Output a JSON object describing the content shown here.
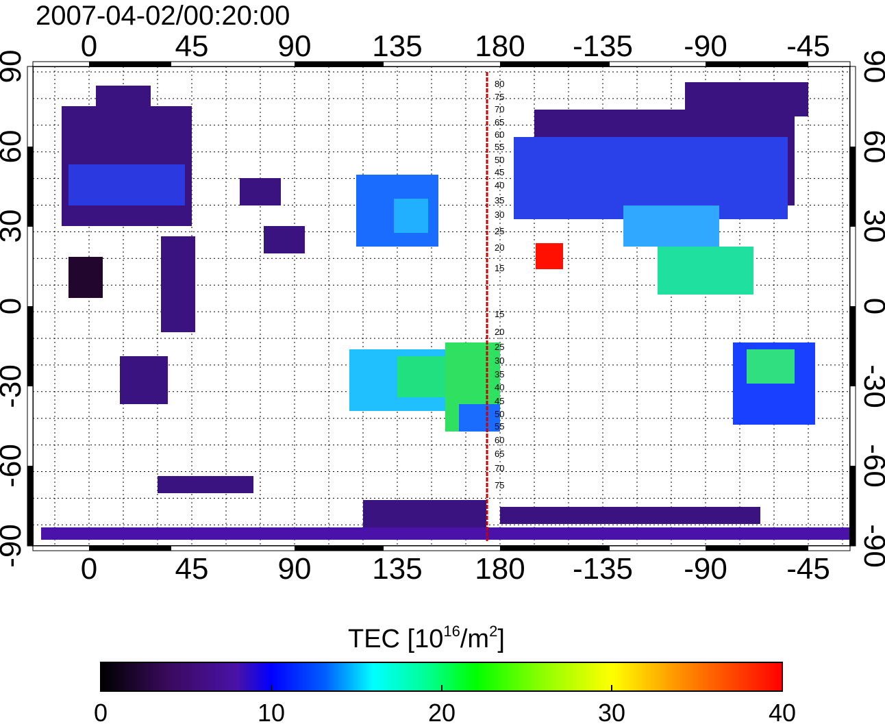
{
  "title": "2007-04-02/00:20:00",
  "x_ticks_top": [
    "0",
    "45",
    "90",
    "135",
    "180",
    "-135",
    "-90",
    "-45"
  ],
  "x_ticks_bottom": [
    "0",
    "45",
    "90",
    "135",
    "180",
    "-135",
    "-90",
    "-45"
  ],
  "y_ticks": [
    "90",
    "60",
    "30",
    "0",
    "-30",
    "-60",
    "-90"
  ],
  "colorbar": {
    "label_main": "TEC  [10",
    "label_sup1": "16",
    "label_mid": "/m",
    "label_sup2": "2",
    "label_end": "]",
    "ticks": [
      "0",
      "10",
      "20",
      "30",
      "40"
    ],
    "colors": [
      "#000000",
      "#3a0a5e",
      "#4a12a8",
      "#0000ff",
      "#00a0ff",
      "#00ffff",
      "#00ff80",
      "#00ff00",
      "#80ff00",
      "#ffff00",
      "#ffa000",
      "#ff4000",
      "#ff0000"
    ]
  },
  "geomag_lat_labels_north": [
    "80",
    "75",
    "70",
    "65",
    "60",
    "55",
    "50",
    "45",
    "40",
    "35",
    "30",
    "25",
    "20",
    "15"
  ],
  "geomag_lat_labels_south": [
    "15",
    "20",
    "25",
    "30",
    "35",
    "40",
    "45",
    "50",
    "55",
    "60",
    "65",
    "70",
    "75"
  ],
  "styles": {
    "terminator_color": "#d00000",
    "grid_color": "#000000"
  }
}
